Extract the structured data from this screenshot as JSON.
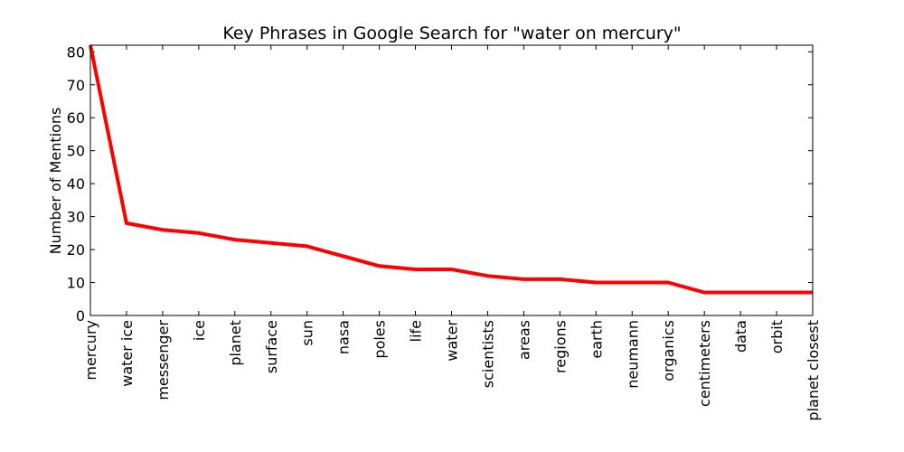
{
  "chart_data": {
    "type": "line",
    "title": "Key Phrases in Google Search for \"water on mercury\"",
    "xlabel": "",
    "ylabel": "Number of Mentions",
    "ylim": [
      0,
      82
    ],
    "yticks": [
      "0",
      "10",
      "20",
      "30",
      "40",
      "50",
      "60",
      "70",
      "80"
    ],
    "grid": false,
    "categories": [
      "mercury",
      "water ice",
      "messenger",
      "ice",
      "planet",
      "surface",
      "sun",
      "nasa",
      "poles",
      "life",
      "water",
      "scientists",
      "areas",
      "regions",
      "earth",
      "neumann",
      "organics",
      "centimeters",
      "data",
      "orbit",
      "planet closest"
    ],
    "series": [
      {
        "color": "#ff0000",
        "values": [
          82,
          28,
          26,
          25,
          23,
          22,
          21,
          18,
          15,
          14,
          14,
          12,
          11,
          11,
          10,
          10,
          10,
          7,
          7,
          7,
          7
        ]
      }
    ]
  }
}
